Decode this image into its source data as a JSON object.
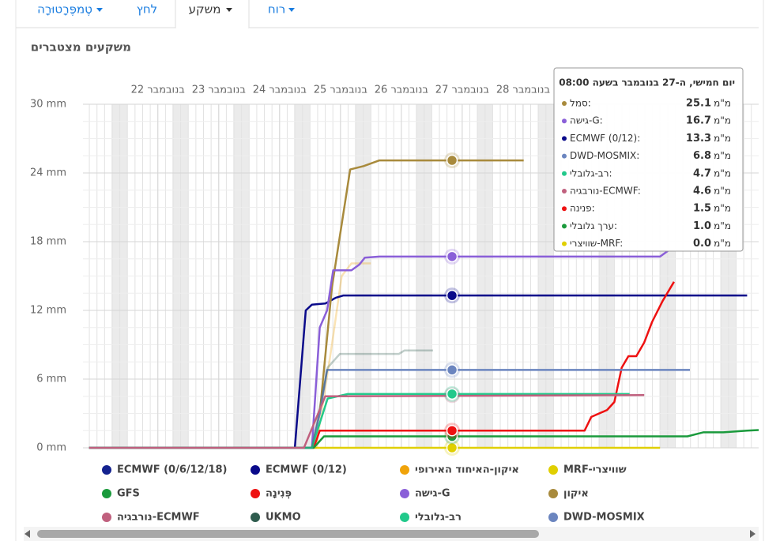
{
  "tabs": [
    "טֶמפֶּרָטוּרָה",
    "לחץ",
    "משקע",
    "רוח"
  ],
  "active_tab": 2,
  "chart_data": {
    "type": "line",
    "title": "משקעים מצטברים",
    "xlim": [
      21.27,
      32.37
    ],
    "xticks": [
      {
        "value": 22.5,
        "label": "22 בנובמבר"
      },
      {
        "value": 23.5,
        "label": "23 בנובמבר"
      },
      {
        "value": 24.5,
        "label": "24 בנובמבר"
      },
      {
        "value": 25.5,
        "label": "25 בנובמבר"
      },
      {
        "value": 26.5,
        "label": "26 בנובמבר"
      },
      {
        "value": 27.5,
        "label": "27 בנובמבר"
      },
      {
        "value": 28.5,
        "label": "28 בנובמבר"
      }
    ],
    "ylim": [
      0,
      30
    ],
    "yticks": [
      {
        "value": 0,
        "label": "0 mm"
      },
      {
        "value": 6,
        "label": "6 mm"
      },
      {
        "value": 12,
        "label": "12 mm"
      },
      {
        "value": 18,
        "label": "18 mm"
      },
      {
        "value": 24,
        "label": "24 mm"
      },
      {
        "value": 30,
        "label": "30 mm"
      }
    ],
    "grid": true,
    "series": [
      {
        "name": "MRF-שוויצרי",
        "color": "#e0cf00",
        "x": [
          21.37,
          30.75
        ],
        "values": [
          0,
          0
        ]
      },
      {
        "name": "איקון-האיחוד האירופי",
        "color": "#f0a30a",
        "opacity": 0.3,
        "x": [
          21.37,
          25.1,
          25.36,
          25.52,
          25.68,
          26.0
        ],
        "values": [
          0,
          0,
          9,
          15,
          16.1,
          16.1
        ]
      },
      {
        "name": "ECMWF (0/12)",
        "color": "#0a0a8a",
        "x": [
          21.37,
          24.75,
          24.93,
          25.03,
          25.25,
          25.42,
          25.55,
          32.18
        ],
        "values": [
          0,
          0,
          12,
          12.5,
          12.6,
          13.1,
          13.3,
          13.3
        ]
      },
      {
        "name": "ECMWF (0/6/12/18)",
        "color": "#14228f",
        "x": [],
        "values": []
      },
      {
        "name": "איקון",
        "color": "#a88a3c",
        "x": [
          21.37,
          25.03,
          25.16,
          25.36,
          25.66,
          25.88,
          26.14,
          28.51
        ],
        "values": [
          0,
          0,
          3,
          14,
          24.3,
          24.6,
          25.1,
          25.1
        ]
      },
      {
        "name": "גישה-G",
        "color": "#8a5fd8",
        "x": [
          21.37,
          25.03,
          25.16,
          25.28,
          25.38,
          25.68,
          25.81,
          25.9,
          26.14,
          30.75,
          30.88
        ],
        "values": [
          0,
          0,
          10.5,
          12,
          15.5,
          15.5,
          16,
          16.6,
          16.7,
          16.7,
          17.2
        ]
      },
      {
        "name": "פְּנִינָה",
        "color": "#ee1111",
        "x": [
          21.37,
          25.06,
          25.16,
          29.51,
          29.62,
          29.88,
          30.0,
          30.12,
          30.23,
          30.36,
          30.49,
          30.62,
          30.79,
          30.98
        ],
        "values": [
          0,
          0,
          1.5,
          1.5,
          2.7,
          3.3,
          4.0,
          7.0,
          8.0,
          8.0,
          9.2,
          11,
          12.8,
          14.5
        ]
      },
      {
        "name": "GFS",
        "color": "#1a9a3c",
        "x": [
          21.37,
          25.06,
          25.23,
          31.2,
          31.46,
          31.79,
          32.18,
          32.37
        ],
        "values": [
          0,
          0,
          1,
          1,
          1.35,
          1.35,
          1.5,
          1.55
        ]
      },
      {
        "name": "DWD-MOSMIX",
        "color": "#6b85bf",
        "x": [
          21.37,
          25.03,
          25.16,
          25.28,
          31.24
        ],
        "values": [
          0,
          0,
          3,
          6.8,
          6.8
        ]
      },
      {
        "name": "רב-גלובלי",
        "color": "#22c98b",
        "x": [
          21.37,
          25.03,
          25.29,
          25.62,
          30.25
        ],
        "values": [
          0,
          0,
          4.3,
          4.7,
          4.7
        ]
      },
      {
        "name": "UKMO",
        "color": "#2f5c4e",
        "opacity": 0.3,
        "x": [
          21.37,
          25.03,
          25.29,
          25.49,
          26.46,
          26.55,
          27.02
        ],
        "values": [
          0,
          0,
          7,
          8.2,
          8.2,
          8.5,
          8.5
        ]
      },
      {
        "name": "נורבגיה-ECMWF",
        "color": "#c0607e",
        "x": [
          21.37,
          24.9,
          25.25,
          30.49
        ],
        "values": [
          0,
          0,
          4.5,
          4.6
        ]
      }
    ],
    "tooltip": {
      "title": "יום חמישי, ה-27 בנובמבר בשעה 08:00",
      "x": 27.333,
      "unit": "מ\"מ",
      "rows": [
        {
          "name": "סמל:",
          "value": 25.1,
          "color": "#a88a3c"
        },
        {
          "name": "גישה-G:",
          "value": 16.7,
          "color": "#8a5fd8"
        },
        {
          "name": "ECMWF (0/12):",
          "value": 13.3,
          "color": "#0a0a8a"
        },
        {
          "name": "DWD-MOSMIX:",
          "value": 6.8,
          "color": "#6b85bf"
        },
        {
          "name": "רב-גלובלי:",
          "value": 4.7,
          "color": "#22c98b"
        },
        {
          "name": "נורבגיה-ECMWF:",
          "value": 4.6,
          "color": "#c0607e"
        },
        {
          "name": "פנינה:",
          "value": 1.5,
          "color": "#ee1111"
        },
        {
          "name": "ערך גלובלי:",
          "value": 1,
          "value_label": "1.0",
          "color": "#1a9a3c"
        },
        {
          "name": "שוויצרי-MRF:",
          "value": 0,
          "value_label": "0.0",
          "color": "#e0cf00"
        }
      ]
    }
  }
}
